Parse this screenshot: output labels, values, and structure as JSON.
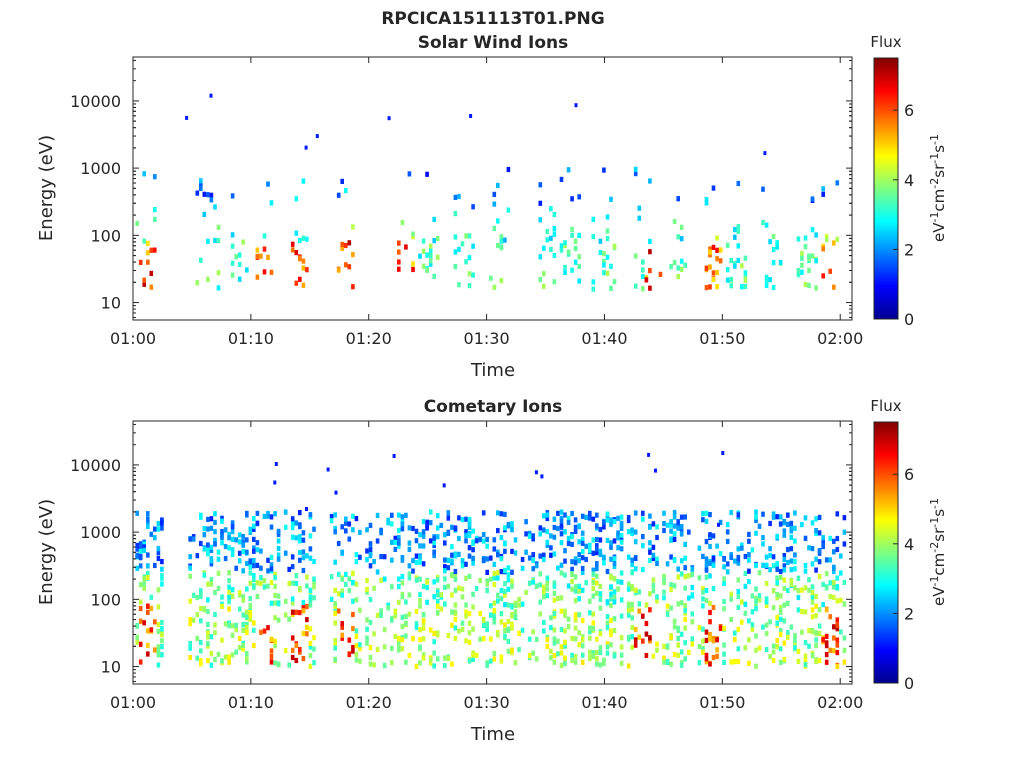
{
  "figure_title": "RPCICA151113T01.PNG",
  "chart_data": [
    {
      "type": "heatmap",
      "title": "Solar Wind Ions",
      "xlabel": "Time",
      "ylabel": "Energy (eV)",
      "x_ticks": [
        "01:00",
        "01:10",
        "01:20",
        "01:30",
        "01:40",
        "01:50",
        "02:00"
      ],
      "y_ticks": [
        "10",
        "100",
        "1000",
        "10000"
      ],
      "xlim_minutes_after_01:00": [
        0,
        61
      ],
      "ylim_eV": [
        5.5,
        45000
      ],
      "y_scale": "log",
      "colorbar": {
        "label": "Flux",
        "units": "eV^-1 cm^-2 sr^-1 s^-1",
        "ticks": [
          "0",
          "2",
          "4",
          "6"
        ],
        "range": [
          0,
          7.5
        ],
        "colormap": "jet"
      },
      "intensity_peaks_minutes": [
        1,
        11,
        14,
        18,
        23,
        44,
        49,
        59
      ],
      "data_note_omitted": true
    },
    {
      "type": "heatmap",
      "title": "Cometary Ions",
      "xlabel": "Time",
      "ylabel": "Energy (eV)",
      "x_ticks": [
        "01:00",
        "01:10",
        "01:20",
        "01:30",
        "01:40",
        "01:50",
        "02:00"
      ],
      "y_ticks": [
        "10",
        "100",
        "1000",
        "10000"
      ],
      "xlim_minutes_after_01:00": [
        0,
        61
      ],
      "ylim_eV": [
        5.5,
        45000
      ],
      "y_scale": "log",
      "colorbar": {
        "label": "Flux",
        "units": "eV^-1 cm^-2 sr^-1 s^-1",
        "ticks": [
          "0",
          "2",
          "4",
          "6"
        ],
        "range": [
          0,
          7.5
        ],
        "colormap": "jet"
      },
      "burst_centers_minutes": [
        1,
        6,
        9,
        11,
        14,
        18,
        21,
        23,
        25,
        28,
        31,
        34,
        37,
        40,
        43,
        46,
        49,
        51,
        54,
        57,
        59
      ],
      "intensity_peaks_minutes": [
        1,
        11,
        14,
        18,
        43,
        49,
        59
      ]
    }
  ],
  "panels": [
    {
      "title": "Solar Wind Ions",
      "xlabel": "Time",
      "ylabel": "Energy (eV)",
      "cb_title": "Flux",
      "cb_unit_parts": [
        "eV",
        "-1",
        "cm",
        "-2",
        "sr",
        "-1",
        "s",
        "-1"
      ]
    },
    {
      "title": "Cometary Ions",
      "xlabel": "Time",
      "ylabel": "Energy (eV)",
      "cb_title": "Flux",
      "cb_unit_parts": [
        "eV",
        "-1",
        "cm",
        "-2",
        "sr",
        "-1",
        "s",
        "-1"
      ]
    }
  ]
}
